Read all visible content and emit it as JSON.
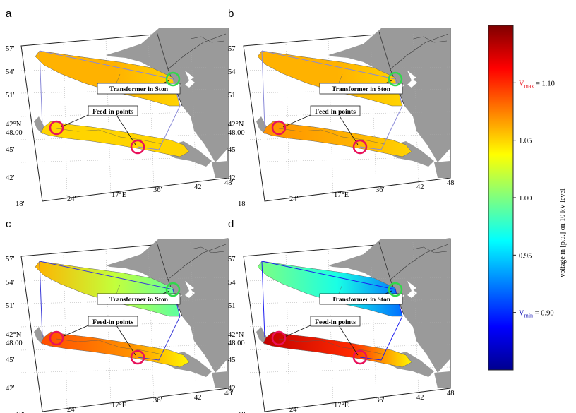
{
  "panels": [
    {
      "id": "a",
      "letter": "a",
      "voltages": [
        1.06,
        1.06,
        1.05,
        1.05,
        1.05,
        1.05
      ],
      "line_color": "#8a8ad8"
    },
    {
      "id": "b",
      "letter": "b",
      "voltages": [
        1.06,
        1.06,
        1.05,
        1.07,
        1.06,
        1.05
      ],
      "line_color": "#8a8ad8"
    },
    {
      "id": "c",
      "letter": "c",
      "voltages": [
        1.06,
        1.02,
        0.99,
        1.09,
        1.07,
        1.04
      ],
      "line_color": "#3b3bd8"
    },
    {
      "id": "d",
      "letter": "d",
      "voltages": [
        1.0,
        0.97,
        0.92,
        1.13,
        1.1,
        1.04
      ],
      "line_color": "#1d1df0"
    }
  ],
  "ticks": {
    "y": [
      "57'",
      "54'",
      "51'",
      "42°N\n48.00",
      "45'",
      "42'"
    ],
    "x": [
      "18'",
      "24'",
      "17°E",
      "36'",
      "42",
      "48'"
    ]
  },
  "callouts": {
    "transformer": "Transformer in Ston",
    "feedin": "Feed-in points"
  },
  "colorbar": {
    "min": 0.85,
    "max": 1.15,
    "ticks": [
      "1.05",
      "1.00",
      "0.95"
    ],
    "tick_values": [
      1.05,
      1.0,
      0.95
    ],
    "vmax_label": "V",
    "vmax_sub": "max",
    "vmax_value": " = 1.10",
    "vmax_at": 1.1,
    "vmin_label": "V",
    "vmin_sub": "min",
    "vmin_value": " = 0.90",
    "vmin_at": 0.9,
    "axis_label": "voltage in [p.u.] on 10 kV level",
    "vmax_color": "#e8101a",
    "vmin_color": "#1a1ab8"
  },
  "colors": {
    "land": "#9a9a9a",
    "transformer_circle": "#2fd84a",
    "feedin_circle": "#e8105a"
  }
}
